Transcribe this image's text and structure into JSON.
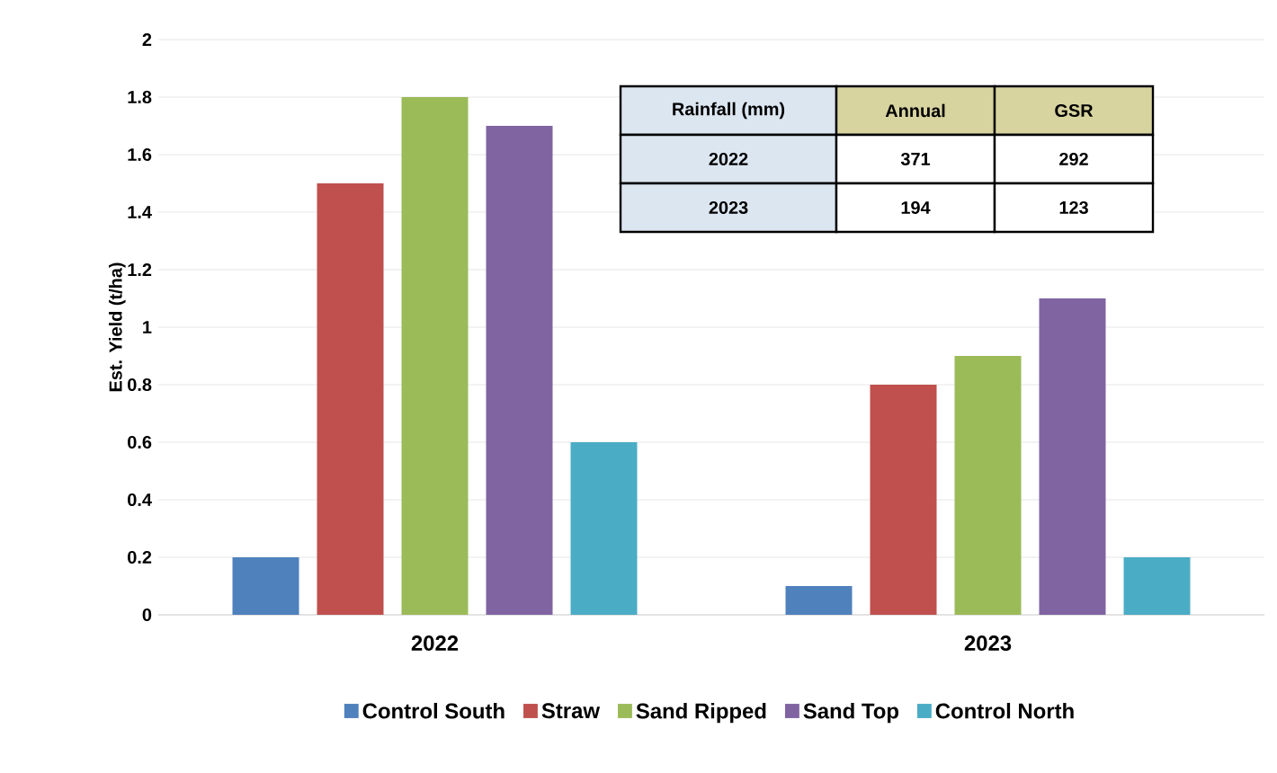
{
  "chart_data": {
    "type": "bar",
    "ylabel": "Est. Yield (t/ha)",
    "categories": [
      "2022",
      "2023"
    ],
    "series": [
      {
        "name": "Control South",
        "color": "#4f81bd",
        "values": [
          0.2,
          0.1
        ]
      },
      {
        "name": "Straw",
        "color": "#c0504d",
        "values": [
          1.5,
          0.8
        ]
      },
      {
        "name": "Sand Ripped",
        "color": "#9bbb59",
        "values": [
          1.8,
          0.9
        ]
      },
      {
        "name": "Sand Top",
        "color": "#8064a2",
        "values": [
          1.7,
          1.1
        ]
      },
      {
        "name": "Control North",
        "color": "#4bacc6",
        "values": [
          0.6,
          0.2
        ]
      }
    ],
    "ylim": [
      0,
      2
    ],
    "yticks": [
      0,
      0.2,
      0.4,
      0.6,
      0.8,
      1,
      1.2,
      1.4,
      1.6,
      1.8,
      2
    ],
    "grid": "y",
    "legend": "bottom",
    "annotations": [
      "Rainfall (mm)",
      "Annual",
      "GSR",
      "2022",
      "371",
      "292",
      "2023",
      "194",
      "123"
    ]
  }
}
